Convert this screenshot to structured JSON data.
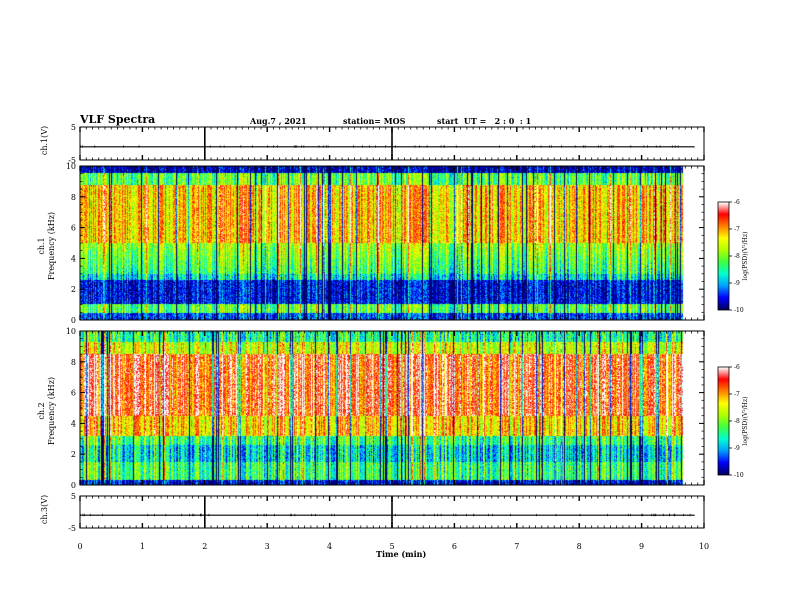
{
  "header": {
    "title": "VLF Spectra",
    "date": "Aug.7 , 2021",
    "station": "station= MOS",
    "start": "start  UT =   2 : 0  : 1"
  },
  "colors": {
    "colormap": [
      "#000060",
      "#0000ff",
      "#00a0ff",
      "#00ffd0",
      "#40ff40",
      "#b0ff00",
      "#ffff00",
      "#ff8000",
      "#ff0000",
      "#ffffff"
    ]
  },
  "chart_data": [
    {
      "type": "line",
      "name": "ch1-voltage",
      "ylabel": "ch.1(V)",
      "yticks": [
        "5",
        "-5"
      ],
      "ylim": [
        -5,
        5
      ],
      "level": -1
    },
    {
      "type": "heatmap",
      "name": "ch1-spectrogram",
      "ylabel": "ch.1\nFrequency (kHz)",
      "yticks": [
        "0",
        "2",
        "4",
        "6",
        "8",
        "10"
      ],
      "ylim": [
        0,
        10
      ],
      "colorbar": {
        "label": "log(PSD)(V²/Hz)",
        "ticks": [
          "-6",
          "-7",
          "-8",
          "-9",
          "-10"
        ],
        "range": [
          -10,
          -6
        ]
      }
    },
    {
      "type": "heatmap",
      "name": "ch2-spectrogram",
      "ylabel": "ch.2\nFrequency (kHz)",
      "yticks": [
        "0",
        "2",
        "4",
        "6",
        "8",
        "10"
      ],
      "ylim": [
        0,
        10
      ],
      "colorbar": {
        "label": "log(PSD)(V²/Hz)",
        "ticks": [
          "-6",
          "-7",
          "-8",
          "-9",
          "-10"
        ],
        "range": [
          -10,
          -6
        ]
      }
    },
    {
      "type": "line",
      "name": "ch3-voltage",
      "ylabel": "ch.3(V)",
      "yticks": [
        "5",
        "-5"
      ],
      "ylim": [
        -5,
        5
      ],
      "level": -1
    }
  ],
  "xaxis": {
    "label": "Time (min)",
    "ticks": [
      "0",
      "1",
      "2",
      "3",
      "4",
      "5",
      "6",
      "7",
      "8",
      "9",
      "10"
    ],
    "xlim": [
      0,
      10
    ],
    "data_end": 9.85
  }
}
